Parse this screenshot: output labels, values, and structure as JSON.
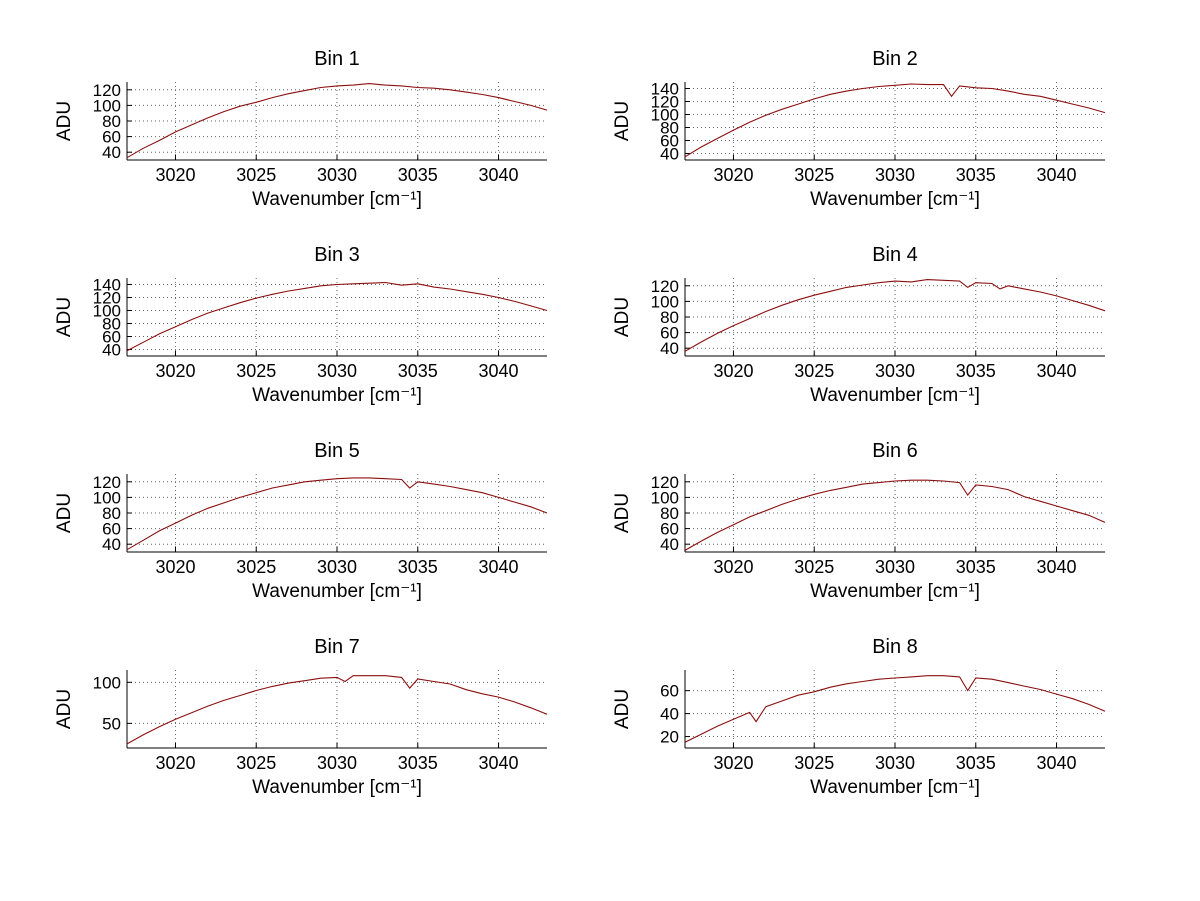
{
  "figure": {
    "background": "#ffffff"
  },
  "style": {
    "line_color": "#8b0f0f",
    "grid_color": "#666666",
    "axis_color": "#000000",
    "text_color": "#000000"
  },
  "chart_data": [
    {
      "type": "line",
      "title": "Bin 1",
      "xlabel": "Wavenumber [cm⁻¹]",
      "ylabel": "ADU",
      "xlim": [
        3017,
        3043
      ],
      "ylim": [
        30,
        130
      ],
      "xticks": [
        3020,
        3025,
        3030,
        3035,
        3040
      ],
      "yticks": [
        40,
        60,
        80,
        100,
        120
      ],
      "grid": true,
      "x": [
        3017,
        3018,
        3019,
        3020,
        3021,
        3022,
        3023,
        3024,
        3025,
        3026,
        3027,
        3028,
        3029,
        3030,
        3031,
        3032,
        3033,
        3034,
        3035,
        3036,
        3037,
        3038,
        3039,
        3040,
        3041,
        3042,
        3043
      ],
      "y": [
        33,
        45,
        55,
        66,
        75,
        84,
        92,
        99,
        104,
        110,
        115,
        119,
        123,
        125,
        126,
        128,
        126,
        125,
        123,
        122,
        120,
        117,
        114,
        110,
        105,
        100,
        94
      ]
    },
    {
      "type": "line",
      "title": "Bin 2",
      "xlabel": "Wavenumber [cm⁻¹]",
      "ylabel": "ADU",
      "xlim": [
        3017,
        3043
      ],
      "ylim": [
        30,
        150
      ],
      "xticks": [
        3020,
        3025,
        3030,
        3035,
        3040
      ],
      "yticks": [
        40,
        60,
        80,
        100,
        120,
        140
      ],
      "grid": true,
      "x": [
        3017,
        3018,
        3019,
        3020,
        3021,
        3022,
        3023,
        3024,
        3025,
        3026,
        3027,
        3028,
        3029,
        3030,
        3031,
        3032,
        3033,
        3033.5,
        3034,
        3035,
        3036,
        3037,
        3038,
        3039,
        3040,
        3041,
        3042,
        3043
      ],
      "y": [
        35,
        50,
        63,
        76,
        88,
        99,
        108,
        116,
        124,
        131,
        136,
        140,
        143,
        145,
        147,
        146,
        146,
        128,
        144,
        141,
        140,
        136,
        131,
        128,
        122,
        116,
        110,
        103
      ]
    },
    {
      "type": "line",
      "title": "Bin 3",
      "xlabel": "Wavenumber [cm⁻¹]",
      "ylabel": "ADU",
      "xlim": [
        3017,
        3043
      ],
      "ylim": [
        30,
        150
      ],
      "xticks": [
        3020,
        3025,
        3030,
        3035,
        3040
      ],
      "yticks": [
        40,
        60,
        80,
        100,
        120,
        140
      ],
      "grid": true,
      "x": [
        3017,
        3018,
        3019,
        3020,
        3021,
        3022,
        3023,
        3024,
        3025,
        3026,
        3027,
        3028,
        3029,
        3030,
        3031,
        3032,
        3033,
        3034,
        3035,
        3036,
        3037,
        3038,
        3039,
        3040,
        3041,
        3042,
        3043
      ],
      "y": [
        38,
        51,
        64,
        75,
        86,
        96,
        104,
        112,
        119,
        125,
        130,
        134,
        138,
        140,
        141,
        142,
        143,
        139,
        141,
        136,
        133,
        129,
        125,
        120,
        114,
        107,
        100
      ]
    },
    {
      "type": "line",
      "title": "Bin 4",
      "xlabel": "Wavenumber [cm⁻¹]",
      "ylabel": "ADU",
      "xlim": [
        3017,
        3043
      ],
      "ylim": [
        30,
        130
      ],
      "xticks": [
        3020,
        3025,
        3030,
        3035,
        3040
      ],
      "yticks": [
        40,
        60,
        80,
        100,
        120
      ],
      "grid": true,
      "x": [
        3017,
        3018,
        3019,
        3020,
        3021,
        3022,
        3023,
        3024,
        3025,
        3026,
        3027,
        3028,
        3029,
        3030,
        3031,
        3032,
        3033,
        3034,
        3034.5,
        3035,
        3036,
        3036.5,
        3037,
        3038,
        3039,
        3040,
        3041,
        3042,
        3043
      ],
      "y": [
        36,
        48,
        59,
        69,
        78,
        87,
        95,
        102,
        108,
        113,
        118,
        121,
        124,
        126,
        125,
        128,
        127,
        126,
        118,
        124,
        123,
        116,
        120,
        116,
        112,
        107,
        101,
        95,
        88
      ]
    },
    {
      "type": "line",
      "title": "Bin 5",
      "xlabel": "Wavenumber [cm⁻¹]",
      "ylabel": "ADU",
      "xlim": [
        3017,
        3043
      ],
      "ylim": [
        30,
        130
      ],
      "xticks": [
        3020,
        3025,
        3030,
        3035,
        3040
      ],
      "yticks": [
        40,
        60,
        80,
        100,
        120
      ],
      "grid": true,
      "x": [
        3017,
        3018,
        3019,
        3020,
        3021,
        3022,
        3023,
        3024,
        3025,
        3026,
        3027,
        3028,
        3029,
        3030,
        3031,
        3032,
        3033,
        3034,
        3034.5,
        3035,
        3036,
        3037,
        3038,
        3039,
        3040,
        3041,
        3042,
        3043
      ],
      "y": [
        33,
        45,
        57,
        67,
        77,
        86,
        93,
        100,
        106,
        112,
        116,
        120,
        122,
        124,
        125,
        125,
        124,
        123,
        112,
        120,
        117,
        114,
        110,
        106,
        100,
        94,
        88,
        80
      ]
    },
    {
      "type": "line",
      "title": "Bin 6",
      "xlabel": "Wavenumber [cm⁻¹]",
      "ylabel": "ADU",
      "xlim": [
        3017,
        3043
      ],
      "ylim": [
        30,
        130
      ],
      "xticks": [
        3020,
        3025,
        3030,
        3035,
        3040
      ],
      "yticks": [
        40,
        60,
        80,
        100,
        120
      ],
      "grid": true,
      "x": [
        3017,
        3018,
        3019,
        3020,
        3021,
        3022,
        3023,
        3024,
        3025,
        3026,
        3027,
        3028,
        3029,
        3030,
        3031,
        3032,
        3033,
        3034,
        3034.5,
        3035,
        3036,
        3037,
        3038,
        3039,
        3040,
        3041,
        3042,
        3043
      ],
      "y": [
        32,
        44,
        55,
        65,
        75,
        83,
        91,
        98,
        104,
        109,
        113,
        117,
        119,
        121,
        122,
        122,
        121,
        119,
        103,
        116,
        114,
        110,
        101,
        95,
        89,
        83,
        77,
        68
      ]
    },
    {
      "type": "line",
      "title": "Bin 7",
      "xlabel": "Wavenumber [cm⁻¹]",
      "ylabel": "ADU",
      "xlim": [
        3017,
        3043
      ],
      "ylim": [
        20,
        115
      ],
      "xticks": [
        3020,
        3025,
        3030,
        3035,
        3040
      ],
      "yticks": [
        50,
        100
      ],
      "grid": true,
      "x": [
        3017,
        3018,
        3019,
        3020,
        3021,
        3022,
        3023,
        3024,
        3025,
        3026,
        3027,
        3028,
        3029,
        3030,
        3030.5,
        3031,
        3032,
        3033,
        3034,
        3034.5,
        3035,
        3036,
        3037,
        3038,
        3039,
        3040,
        3041,
        3042,
        3043
      ],
      "y": [
        25,
        36,
        46,
        55,
        63,
        71,
        78,
        84,
        90,
        95,
        99,
        102,
        105,
        106,
        101,
        108,
        108,
        108,
        106,
        93,
        104,
        101,
        98,
        91,
        86,
        82,
        76,
        69,
        61
      ]
    },
    {
      "type": "line",
      "title": "Bin 8",
      "xlabel": "Wavenumber [cm⁻¹]",
      "ylabel": "ADU",
      "xlim": [
        3017,
        3043
      ],
      "ylim": [
        10,
        78
      ],
      "xticks": [
        3020,
        3025,
        3030,
        3035,
        3040
      ],
      "yticks": [
        20,
        40,
        60
      ],
      "grid": true,
      "x": [
        3017,
        3018,
        3019,
        3020,
        3021,
        3021.4,
        3022,
        3023,
        3024,
        3025,
        3026,
        3027,
        3028,
        3029,
        3030,
        3031,
        3032,
        3033,
        3034,
        3034.5,
        3035,
        3036,
        3037,
        3038,
        3039,
        3040,
        3041,
        3042,
        3043
      ],
      "y": [
        15,
        22,
        29,
        35,
        41,
        33,
        46,
        51,
        56,
        59,
        63,
        66,
        68,
        70,
        71,
        72,
        73,
        73,
        72,
        60,
        71,
        70,
        67,
        64,
        61,
        57,
        53,
        48,
        42
      ]
    }
  ]
}
